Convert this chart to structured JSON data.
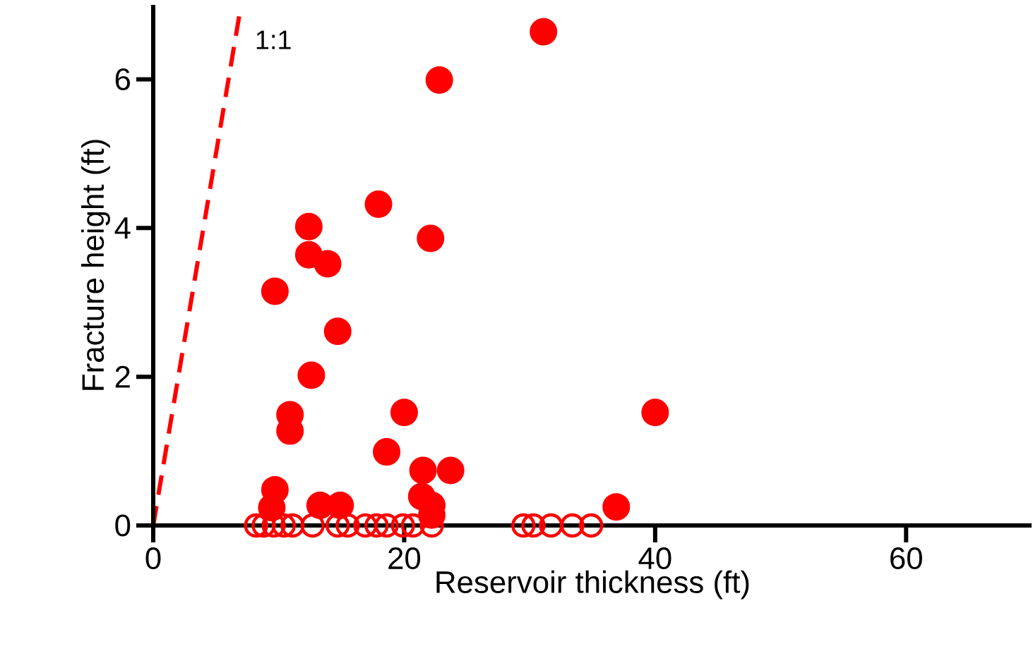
{
  "chart_data": {
    "type": "scatter",
    "xlabel": "Reservoir thickness (ft)",
    "ylabel": "Fracture height (ft)",
    "xlim": [
      0,
      70
    ],
    "ylim": [
      0,
      7
    ],
    "xticks": [
      0,
      20,
      40,
      60
    ],
    "yticks": [
      0,
      2,
      4,
      6
    ],
    "grid": false,
    "marker": "circle",
    "annotations": [
      "1:1"
    ],
    "series": [
      {
        "color": "#ff0000",
        "x": [
          31.1,
          22.8,
          17.95,
          12.4,
          22.1,
          12.4,
          13.9,
          9.7,
          14.7,
          12.6,
          10.9,
          10.9,
          20.0,
          40.0,
          18.6,
          21.5,
          23.7,
          9.7,
          9.45,
          13.3,
          14.9,
          21.4,
          22.2,
          22.2,
          36.9
        ],
        "values": [
          6.64,
          5.99,
          4.32,
          4.02,
          3.86,
          3.64,
          3.52,
          3.15,
          2.61,
          2.02,
          1.49,
          1.27,
          1.52,
          1.52,
          0.99,
          0.74,
          0.74,
          0.48,
          0.24,
          0.27,
          0.27,
          0.39,
          0.27,
          0.14,
          0.25
        ]
      },
      {
        "color": "#ff0000",
        "x": [
          8.2,
          8.8,
          9.6,
          10.4,
          11.1,
          12.7,
          14.7,
          15.5,
          16.9,
          17.8,
          18.6,
          19.9,
          20.7,
          22.2,
          29.5,
          30.3,
          31.7,
          33.4,
          34.9
        ],
        "values": [
          0,
          0,
          0,
          0,
          0,
          0,
          0,
          0,
          0,
          0,
          0,
          0,
          0,
          0,
          0,
          0,
          0,
          0,
          0
        ]
      },
      {
        "type": "line",
        "color": "#ff0000",
        "line_style": "dashed",
        "marker": "none",
        "x": [
          0,
          6.85
        ],
        "values": [
          0,
          6.85
        ]
      }
    ]
  }
}
